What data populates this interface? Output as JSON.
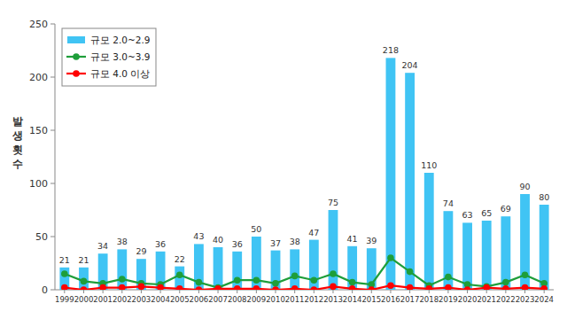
{
  "chart_data": {
    "type": "bar",
    "y_label": "발생횟수",
    "categories": [
      "1999",
      "2000",
      "2001",
      "2002",
      "2003",
      "2004",
      "2005",
      "2006",
      "2007",
      "2008",
      "2009",
      "2010",
      "2011",
      "2012",
      "2013",
      "2014",
      "2015",
      "2016",
      "2017",
      "2018",
      "2019",
      "2020",
      "2021",
      "2022",
      "2023",
      "2024"
    ],
    "series": [
      {
        "name": "규모 2.0~2.9",
        "type": "bar",
        "color": "#40c4f4",
        "data_labels": true,
        "values": [
          21,
          21,
          34,
          38,
          29,
          36,
          22,
          43,
          40,
          36,
          50,
          37,
          38,
          47,
          75,
          41,
          39,
          218,
          204,
          110,
          74,
          63,
          65,
          69,
          90,
          80
        ]
      },
      {
        "name": "규모 3.0~3.9",
        "type": "line",
        "color": "#1e9e3a",
        "marker": "circle",
        "line_style": "solid",
        "values": [
          15,
          8,
          6,
          10,
          6,
          5,
          14,
          7,
          2,
          9,
          9,
          6,
          13,
          9,
          15,
          7,
          5,
          30,
          17,
          4,
          12,
          5,
          3,
          7,
          14,
          6
        ]
      },
      {
        "name": "규모 4.0 이상",
        "type": "line",
        "color": "#ff0000",
        "marker": "circle",
        "line_style": "solid",
        "values": [
          2,
          0,
          2,
          2,
          3,
          2,
          1,
          0,
          1,
          1,
          1,
          0,
          1,
          0,
          3,
          1,
          0,
          4,
          2,
          1,
          2,
          0,
          2,
          1,
          2,
          1
        ]
      }
    ],
    "ylim": [
      0,
      250
    ],
    "yticks": [
      0,
      50,
      100,
      150,
      200,
      250
    ],
    "grid": false,
    "legend": "upper left"
  }
}
